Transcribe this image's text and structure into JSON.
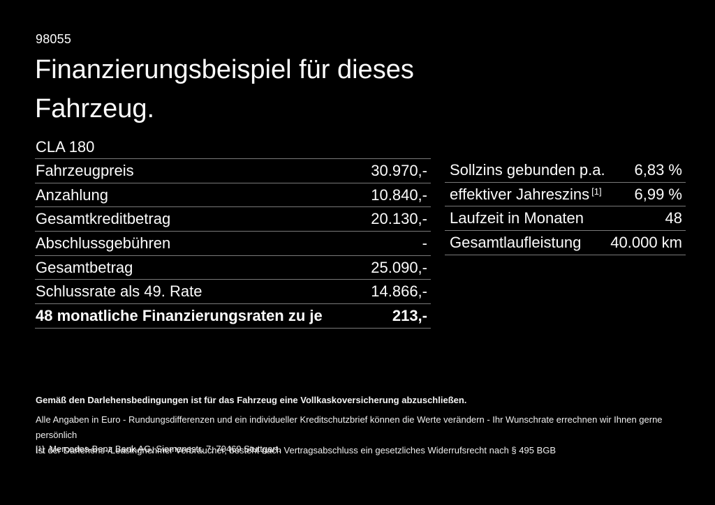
{
  "page": {
    "background": "#000000",
    "text_color": "#f5f5f5",
    "divider_color": "#7a7a7a"
  },
  "header": {
    "reference_number": "98055",
    "title": "Finanzierungsbeispiel für dieses Fahrzeug.",
    "model": "CLA 180"
  },
  "financing_table": {
    "rows": [
      {
        "label": "Fahrzeugpreis",
        "value": "30.970,-",
        "bold": false
      },
      {
        "label": "Anzahlung",
        "value": "10.840,-",
        "bold": false
      },
      {
        "label": "Gesamtkreditbetrag",
        "value": "20.130,-",
        "bold": false
      },
      {
        "label": "Abschlussgebühren",
        "value": "-",
        "bold": false
      },
      {
        "label": "Gesamtbetrag",
        "value": "25.090,-",
        "bold": false
      },
      {
        "label": "Schlussrate als 49. Rate",
        "value": "14.866,-",
        "bold": false
      },
      {
        "label": "48 monatliche Finanzierungsraten zu je",
        "value": "213,-",
        "bold": true
      }
    ]
  },
  "conditions_table": {
    "rows": [
      {
        "label": "Sollzins gebunden p.a.",
        "sup": "",
        "value": "6,83 %"
      },
      {
        "label": "effektiver Jahreszins",
        "sup": "[1]",
        "value": "6,99 %"
      },
      {
        "label": "Laufzeit in Monaten",
        "sup": "",
        "value": "48"
      },
      {
        "label": "Gesamtlaufleistung",
        "sup": "",
        "value": "40.000 km"
      }
    ]
  },
  "footer": {
    "insurance_note": "Gemäß den Darlehensbedingungen ist für das Fahrzeug eine Vollkaskoversicherung abzuschließen.",
    "note_line1": "Alle Angaben in Euro - Rundungsdifferenzen und ein individueller Kreditschutzbrief können die Werte verändern - Ihr Wunschrate errechnen wir Ihnen gerne persönlich",
    "note_line2": "Ist der Darlehens-/Leasingnehmer Verbraucher, besteht nach Vertragsabschluss ein gesetzliches Widerrufsrecht nach § 495 BGB",
    "footnote_marker": "[1]",
    "footnote_text": "Mercedes-Benz Bank AG, Siemensstr. 7, 70469 Stuttgart."
  }
}
